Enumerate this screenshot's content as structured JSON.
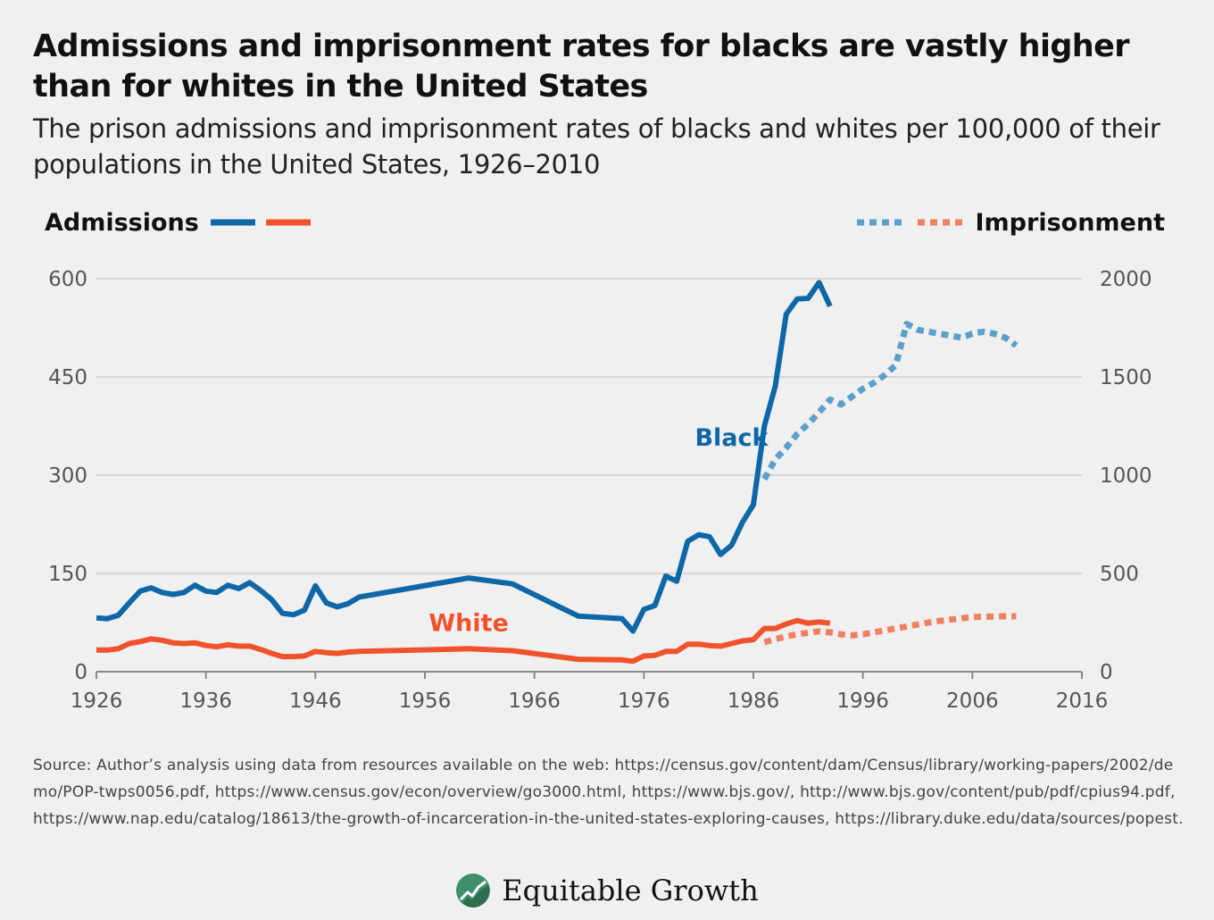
{
  "title": "Admissions and imprisonment rates for blacks are vastly higher than for whites in the United States",
  "subtitle": "The prison admissions and imprisonment rates of blacks and whites per 100,000 of their populations in the United States, 1926–2010",
  "source": "Source: Author’s analysis using data from resources available on the web: https://census.gov/content/dam/Census/library/working-papers/2002/demo/POP-twps0056.pdf, https://www.census.gov/econ/overview/go3000.html, https://www.bjs.gov/, http://www.bjs.gov/content/pub/pdf/cpius94.pdf, https://www.nap.edu/catalog/18613/the-growth-of-incarceration-in-the-united-states-exploring-causes, https://library.duke.edu/data/sources/popest.",
  "brand": {
    "name": "Equitable Growth",
    "logo_icon": "growth-chart-leaf-icon"
  },
  "colors": {
    "black_admissions": "#0e67a6",
    "white_admissions": "#f0532b",
    "black_imprisonment": "#5c9fcb",
    "white_imprisonment": "#f08062",
    "grid": "#d6d6d6",
    "axis": "#888888",
    "brand_green": "#3f8f6a",
    "background": "#f0f0f0"
  },
  "chart_data": {
    "type": "line",
    "xlim": [
      1926,
      2016
    ],
    "xticks": [
      1926,
      1936,
      1946,
      1956,
      1966,
      1976,
      1986,
      1996,
      2006,
      2016
    ],
    "ylim_left": [
      0,
      600
    ],
    "yticks_left": [
      0,
      150,
      300,
      450,
      600
    ],
    "ylim_right": [
      0,
      2000
    ],
    "yticks_right": [
      0,
      500,
      1000,
      1500,
      2000
    ],
    "grid": true,
    "legend": {
      "left": {
        "label": "Admissions",
        "placement": "top-left"
      },
      "right": {
        "label": "Imprisonment",
        "placement": "top-right"
      }
    },
    "series": [
      {
        "name": "Black",
        "measure": "admissions",
        "axis": "left",
        "style": "solid",
        "label_year": 1984,
        "label_value": 345,
        "x": [
          1926,
          1927,
          1928,
          1929,
          1930,
          1931,
          1932,
          1933,
          1934,
          1935,
          1936,
          1937,
          1938,
          1939,
          1940,
          1941,
          1942,
          1943,
          1944,
          1945,
          1946,
          1947,
          1948,
          1949,
          1950,
          1960,
          1964,
          1970,
          1974,
          1975,
          1976,
          1977,
          1978,
          1979,
          1980,
          1981,
          1982,
          1983,
          1984,
          1985,
          1986,
          1987,
          1988,
          1989,
          1990,
          1991,
          1992,
          1993
        ],
        "y": [
          82,
          81,
          86,
          105,
          123,
          128,
          121,
          118,
          121,
          132,
          123,
          121,
          132,
          127,
          136,
          124,
          110,
          89,
          87,
          94,
          131,
          105,
          99,
          104,
          114,
          143,
          134,
          85,
          81,
          62,
          95,
          101,
          146,
          138,
          199,
          209,
          206,
          179,
          193,
          228,
          255,
          375,
          436,
          546,
          569,
          570,
          594,
          558
        ]
      },
      {
        "name": "White",
        "measure": "admissions",
        "axis": "left",
        "style": "solid",
        "label_year": 1960,
        "label_value": 62,
        "x": [
          1926,
          1927,
          1928,
          1929,
          1930,
          1931,
          1932,
          1933,
          1934,
          1935,
          1936,
          1937,
          1938,
          1939,
          1940,
          1941,
          1942,
          1943,
          1944,
          1945,
          1946,
          1947,
          1948,
          1949,
          1950,
          1960,
          1964,
          1970,
          1974,
          1975,
          1976,
          1977,
          1978,
          1979,
          1980,
          1981,
          1982,
          1983,
          1984,
          1985,
          1986,
          1987,
          1988,
          1989,
          1990,
          1991,
          1992,
          1993
        ],
        "y": [
          33,
          33,
          35,
          43,
          46,
          50,
          48,
          44,
          43,
          44,
          40,
          38,
          41,
          39,
          39,
          34,
          28,
          23,
          23,
          24,
          31,
          29,
          28,
          30,
          31,
          35,
          32,
          19,
          18,
          16,
          24,
          25,
          31,
          31,
          42,
          42,
          40,
          39,
          43,
          47,
          49,
          66,
          66,
          73,
          78,
          74,
          76,
          74
        ]
      },
      {
        "name": "Black",
        "measure": "imprisonment",
        "axis": "right",
        "style": "dotted",
        "x": [
          1987,
          1988,
          1989,
          1990,
          1991,
          1992,
          1993,
          1994,
          1995,
          1996,
          1997,
          1998,
          1999,
          2000,
          2001,
          2002,
          2003,
          2004,
          2005,
          2006,
          2007,
          2008,
          2009,
          2010
        ],
        "y": [
          980,
          1080,
          1140,
          1210,
          1260,
          1320,
          1385,
          1360,
          1400,
          1440,
          1470,
          1510,
          1560,
          1770,
          1740,
          1730,
          1720,
          1710,
          1700,
          1720,
          1730,
          1720,
          1700,
          1660
        ]
      },
      {
        "name": "White",
        "measure": "imprisonment",
        "axis": "right",
        "style": "dotted",
        "x": [
          1987,
          1988,
          1989,
          1990,
          1991,
          1992,
          1993,
          1994,
          1995,
          1996,
          1997,
          1998,
          1999,
          2000,
          2001,
          2002,
          2003,
          2004,
          2005,
          2006,
          2007,
          2008,
          2009,
          2010
        ],
        "y": [
          150,
          165,
          180,
          190,
          198,
          205,
          200,
          190,
          185,
          190,
          200,
          210,
          220,
          230,
          240,
          250,
          258,
          265,
          272,
          278,
          280,
          281,
          282,
          282
        ]
      }
    ]
  }
}
